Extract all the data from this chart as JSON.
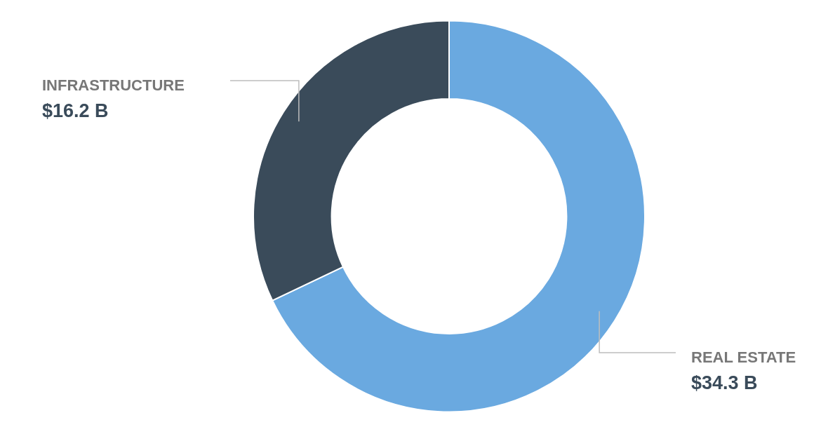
{
  "chart_data": {
    "type": "donut",
    "categories": [
      "REAL ESTATE",
      "INFRASTRUCTURE"
    ],
    "values": [
      34.3,
      16.2
    ],
    "colors": [
      "#6aa9e0",
      "#3a4b5a"
    ],
    "value_labels": [
      "$34.3 B",
      "$16.2 B"
    ],
    "legend": false
  }
}
